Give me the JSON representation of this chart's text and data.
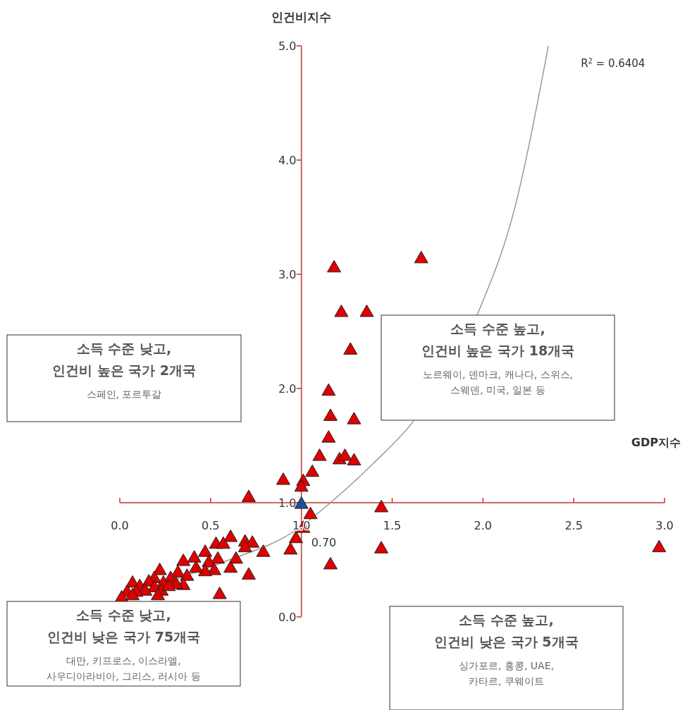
{
  "chart_data": {
    "type": "scatter",
    "xlabel": "GDP지수",
    "ylabel": "인건비지수",
    "xlim": [
      0,
      3
    ],
    "ylim": [
      0,
      5
    ],
    "xticks": [
      {
        "value": 0,
        "label": "0.0"
      },
      {
        "value": 0.5,
        "label": "0.5"
      },
      {
        "value": 1,
        "label": "1.0"
      },
      {
        "value": 1.5,
        "label": "1.5"
      },
      {
        "value": 2,
        "label": "2.0"
      },
      {
        "value": 2.5,
        "label": "2.5"
      },
      {
        "value": 3,
        "label": "3.0"
      }
    ],
    "yticks": [
      {
        "value": 0,
        "label": "0.0"
      },
      {
        "value": 1,
        "label": "1.0"
      },
      {
        "value": 2,
        "label": "2.0"
      },
      {
        "value": 3,
        "label": "3.0"
      },
      {
        "value": 4,
        "label": "4.0"
      },
      {
        "value": 5,
        "label": "5.0"
      }
    ],
    "grid": false,
    "marker": "triangle",
    "series": [
      {
        "color": "#e00000",
        "x": [
          1.18,
          1.66,
          1.22,
          1.36,
          1.27,
          1.15,
          1.16,
          1.29,
          1.15,
          1.1,
          1.21,
          1.24,
          1.29,
          1.06,
          1.01,
          1.0,
          0.9,
          0.71,
          1.05,
          1.01,
          0.97,
          0.94,
          1.44,
          1.44,
          1.16,
          2.97,
          0.61,
          0.53,
          0.57,
          0.69,
          0.73,
          0.69,
          0.79,
          0.47,
          0.41,
          0.35,
          0.54,
          0.49,
          0.64,
          0.61,
          0.52,
          0.47,
          0.42,
          0.22,
          0.32,
          0.37,
          0.71,
          0.28,
          0.19,
          0.16,
          0.07,
          0.11,
          0.24,
          0.35,
          0.31,
          0.19,
          0.14,
          0.04,
          0.09,
          0.23,
          0.27,
          0.01,
          0.07,
          0.55,
          0.21
        ],
        "values": [
          3.06,
          3.14,
          2.67,
          2.67,
          2.34,
          1.98,
          1.76,
          1.73,
          1.57,
          1.41,
          1.38,
          1.41,
          1.37,
          1.27,
          1.19,
          1.14,
          1.2,
          1.05,
          0.9,
          0.78,
          0.69,
          0.59,
          0.96,
          0.6,
          0.46,
          0.61,
          0.7,
          0.64,
          0.64,
          0.66,
          0.65,
          0.61,
          0.57,
          0.57,
          0.52,
          0.49,
          0.51,
          0.48,
          0.51,
          0.43,
          0.41,
          0.4,
          0.43,
          0.41,
          0.39,
          0.36,
          0.37,
          0.34,
          0.34,
          0.31,
          0.3,
          0.27,
          0.3,
          0.28,
          0.29,
          0.26,
          0.23,
          0.22,
          0.22,
          0.23,
          0.27,
          0.17,
          0.19,
          0.2,
          0.19
        ]
      },
      {
        "color": "#1f4e9a",
        "x": [
          1.0
        ],
        "values": [
          0.99
        ]
      },
      {
        "type": "line",
        "color": "#999999",
        "marker": "none",
        "x": [
          0.04,
          0.31,
          0.57,
          0.96,
          1.16,
          1.4,
          1.61,
          1.98,
          2.17,
          2.36
        ],
        "values": [
          0.15,
          0.33,
          0.48,
          0.75,
          1.0,
          1.35,
          1.7,
          2.69,
          3.55,
          5.0
        ]
      }
    ],
    "annotations": [
      "R$^{2}$ = 0.6404",
      {
        "text": "0.70",
        "x": 1.0,
        "y": 0.7
      },
      "소득 수준 낮고,\n인건비 높은 국가 2개국",
      "스페인, 포르투갈",
      "소득 수준 높고,\n인건비 높은 국가 18개국",
      "노르웨이, 덴마크, 캐나다, 스위스,\n스웨덴, 미국, 일본 등",
      "소득 수준 낮고,\n인건비 낮은 국가 75개국",
      "대만, 키프로스, 이스라엘,\n사우디아라비아, 그리스, 러시아 등",
      "소득 수준 높고,\n인건비 낮은 국가 5개국",
      "싱가포르, 홍콩, UAE,\n카타르, 쿠웨이트"
    ]
  }
}
